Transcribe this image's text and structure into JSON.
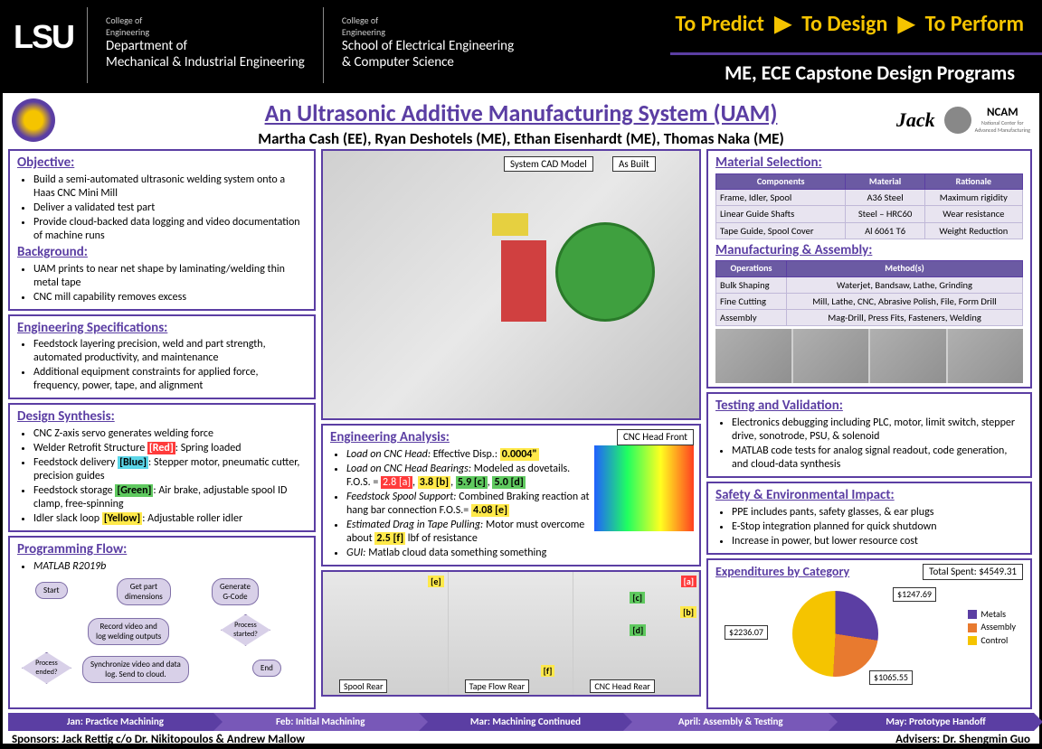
{
  "header": {
    "lsu": "LSU",
    "dept1_label": "College of\nEngineering",
    "dept1_name": "Department of\nMechanical & Industrial Engineering",
    "dept2_label": "College of\nEngineering",
    "dept2_name": "School of Electrical Engineering\n& Computer Science",
    "tagline": {
      "predict": "To Predict",
      "design": "To Design",
      "perform": "To Perform"
    },
    "subheader": "ME, ECE Capstone Design Programs"
  },
  "title": "An Ultrasonic Additive Manufacturing System (UAM)",
  "authors": "Martha Cash (EE), Ryan Deshotels (ME), Ethan Eisenhardt (ME), Thomas Naka (ME)",
  "sponsors_logos": {
    "jack": "Jack",
    "ncam": "NCAM",
    "ncam_sub": "National Center for\nAdvanced Manufacturing"
  },
  "objective": {
    "heading": "Objective:",
    "items": [
      "Build a semi-automated ultrasonic welding system onto a Haas CNC Mini Mill",
      "Deliver a validated test part",
      "Provide cloud-backed data logging and video documentation of machine runs"
    ]
  },
  "background": {
    "heading": "Background:",
    "items": [
      "UAM prints to near net shape by laminating/welding thin metal tape",
      "CNC mill capability removes excess"
    ]
  },
  "engspec": {
    "heading": "Engineering Specifications:",
    "items": [
      "Feedstock layering precision, weld and part strength, automated productivity, and maintenance",
      "Additional equipment constraints for applied force, frequency, power, tape, and alignment"
    ]
  },
  "design": {
    "heading": "Design Synthesis:",
    "items_html": [
      "CNC Z-axis servo generates welding force",
      "Welder Retrofit Structure <span class='hl-red'>[Red]</span>: Spring loaded",
      "Feedstock delivery <span class='hl-blue'>[Blue]</span>: Stepper motor, pneumatic cutter, precision guides",
      "Feedstock storage <span class='hl-green'>[Green]</span>: Air brake, adjustable spool ID clamp, free-spinning",
      "Idler slack loop <span class='hl-yellow'>[Yellow]</span>: Adjustable roller idler"
    ]
  },
  "progflow": {
    "heading": "Programming Flow:",
    "tool": "MATLAB R2019b",
    "nodes": {
      "start": "Start",
      "getpart": "Get part\ndimensions",
      "gcode": "Generate\nG-Code",
      "record": "Record video and\nlog welding outputs",
      "procstart": "Process\nstarted?",
      "procend": "Process\nended?",
      "sync": "Synchronize video and data\nlog. Send to cloud.",
      "end": "End"
    }
  },
  "cad_labels": {
    "cad": "System CAD Model",
    "built": "As Built"
  },
  "analysis": {
    "heading": "Engineering Analysis:",
    "items_html": [
      "<i>Load on CNC Head:</i> Effective Disp.: <span class='hl-yellow'>0.0004\"</span>",
      "<i>Load on CNC Head Bearings:</i> Modeled as dovetails. F.O.S. = <span class='hl-red2'>2.8 [a]</span>, <span class='hl-yellow'>3.8 [b]</span>, <span class='hl-green'>5.9 [c]</span>, <span class='hl-green'>5.0 [d]</span>",
      "<i>Feedstock Spool Support:</i> Combined Braking reaction at hang bar connection F.O.S.= <span class='hl-yellow'>4.08 [e]</span>",
      "<i>Estimated Drag in Tape Pulling:</i> Motor must overcome about <span class='hl-yellow'>2.5 [f]</span> lbf of resistance",
      "<i>GUI:</i> Matlab cloud data something something"
    ],
    "fea_label": "CNC Head Front",
    "sub_labels": {
      "spool": "Spool Rear",
      "tape": "Tape Flow Rear",
      "cncrear": "CNC Head Rear"
    },
    "fea_tags": {
      "a": "[a]",
      "b": "[b]",
      "c": "[c]",
      "d": "[d]",
      "e": "[e]",
      "f": "[f]"
    }
  },
  "material": {
    "heading": "Material Selection:",
    "cols": [
      "Components",
      "Material",
      "Rationale"
    ],
    "rows": [
      [
        "Frame, Idler, Spool",
        "A36 Steel",
        "Maximum rigidity"
      ],
      [
        "Linear Guide Shafts",
        "Steel – HRC60",
        "Wear resistance"
      ],
      [
        "Tape Guide, Spool Cover",
        "Al 6061 T6",
        "Weight Reduction"
      ]
    ]
  },
  "mfg": {
    "heading": "Manufacturing & Assembly:",
    "cols": [
      "Operations",
      "Method(s)"
    ],
    "rows": [
      [
        "Bulk Shaping",
        "Waterjet, Bandsaw, Lathe, Grinding"
      ],
      [
        "Fine Cutting",
        "Mill, Lathe, CNC, Abrasive Polish, File, Form Drill"
      ],
      [
        "Assembly",
        "Mag-Drill, Press Fits, Fasteners, Welding"
      ]
    ]
  },
  "testing": {
    "heading": "Testing and Validation:",
    "items": [
      "Electronics debugging including PLC, motor, limit switch, stepper drive, sonotrode, PSU, & solenoid",
      "MATLAB code tests for analog signal readout, code generation, and cloud-data synthesis"
    ]
  },
  "safety": {
    "heading": "Safety & Environmental Impact:",
    "items": [
      "PPE includes pants, safety glasses, & ear plugs",
      "E-Stop integration planned for quick shutdown",
      "Increase in power, but lower resource cost"
    ]
  },
  "expenditures": {
    "heading": "Expenditures by Category",
    "total_label": "Total Spent: $4549.31",
    "callouts": {
      "metals": "$1247.69",
      "assembly": "$1065.55",
      "control": "$2236.07"
    },
    "legend": [
      {
        "label": "Metals",
        "color": "#5b3ea3"
      },
      {
        "label": "Assembly",
        "color": "#e87a2f"
      },
      {
        "label": "Control",
        "color": "#f5c400"
      }
    ],
    "colors": {
      "metals": "#5b3ea3",
      "assembly": "#e87a2f",
      "control": "#f5c400"
    }
  },
  "timeline": [
    {
      "label": "Jan: Practice Machining",
      "bg": "#5b3ea3"
    },
    {
      "label": "Feb: Initial Machining",
      "bg": "#7858b8"
    },
    {
      "label": "Mar: Machining Continued",
      "bg": "#5b3ea3"
    },
    {
      "label": "April: Assembly & Testing",
      "bg": "#7858b8"
    },
    {
      "label": "May: Prototype Handoff",
      "bg": "#5b3ea3"
    }
  ],
  "footer": {
    "sponsors": "Sponsors: Jack Rettig c/o Dr. Nikitopoulos & Andrew Mallow",
    "advisers": "Advisers: Dr. Shengmin Guo"
  }
}
